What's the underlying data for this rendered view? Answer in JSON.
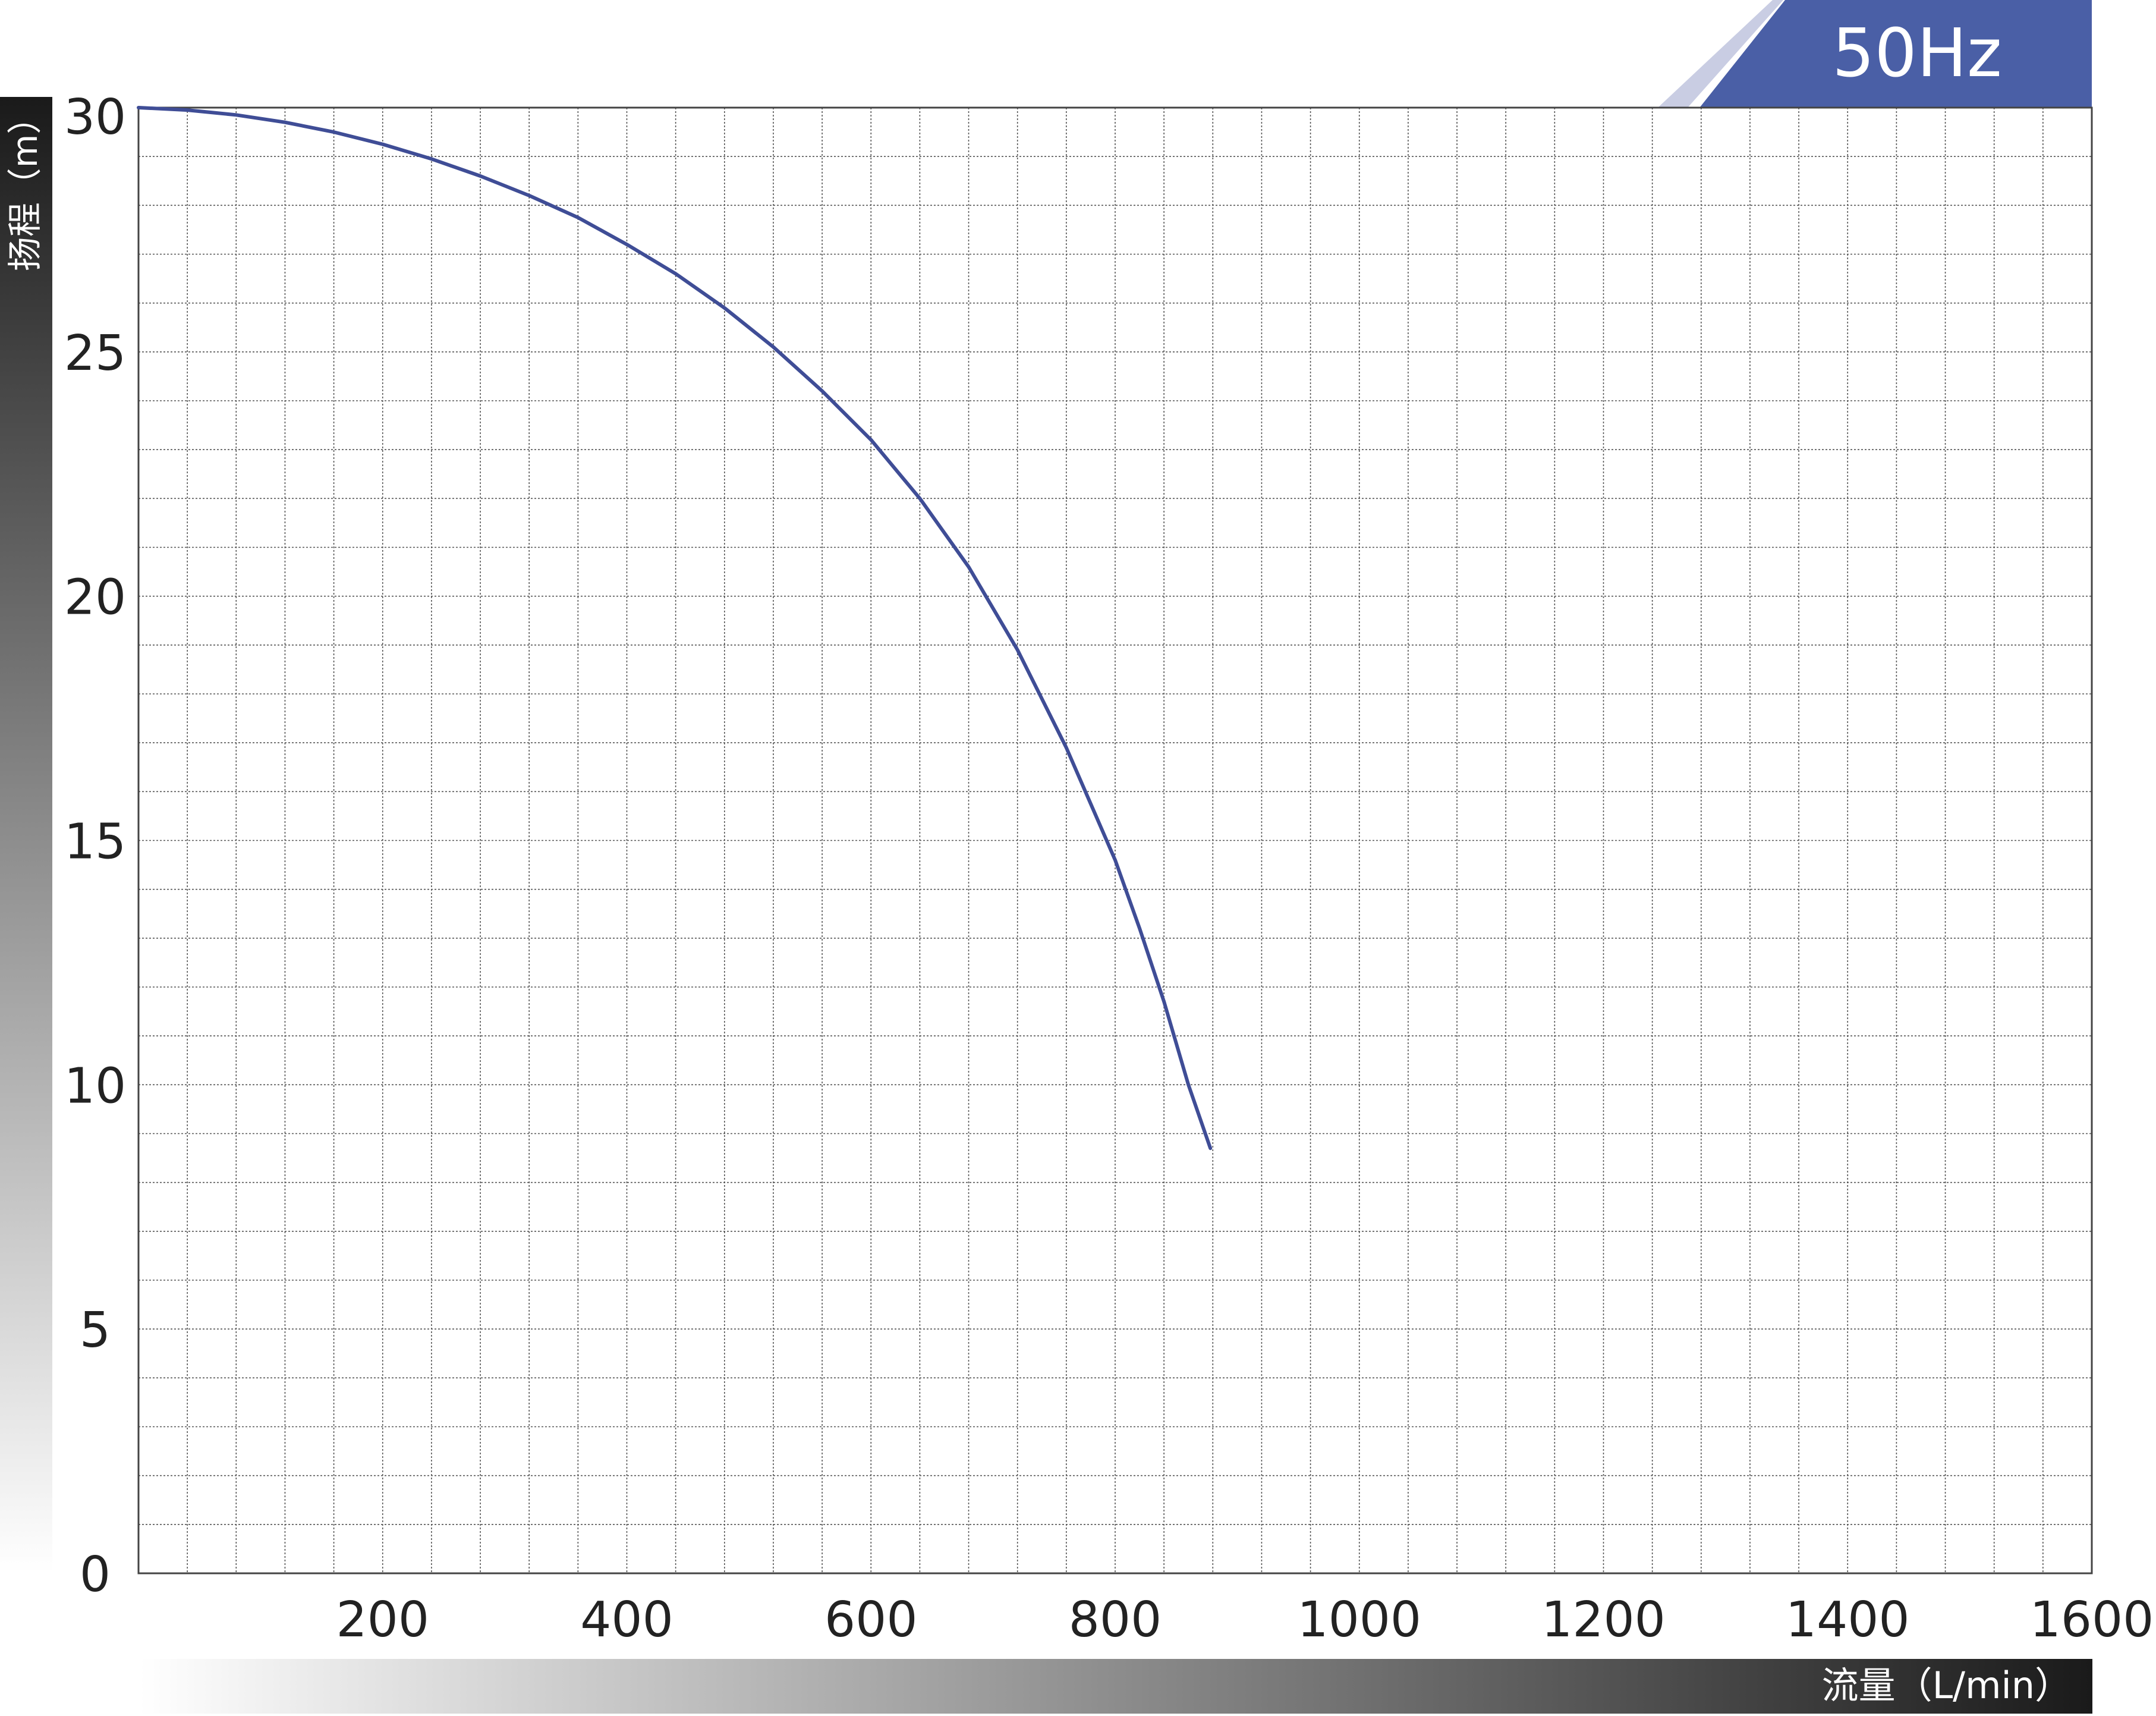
{
  "chart_data": {
    "type": "line",
    "badge_label": "50Hz",
    "xlabel": "流量（L/min）",
    "ylabel": "扬程（m）",
    "xlim": [
      0,
      1600
    ],
    "ylim": [
      0,
      30
    ],
    "x_ticks": [
      "200",
      "400",
      "600",
      "800",
      "1000",
      "1200",
      "1400",
      "1600"
    ],
    "y_ticks": [
      "0",
      "5",
      "10",
      "15",
      "20",
      "25",
      "30"
    ],
    "grid": true,
    "series": [
      {
        "color": "#3f4d96",
        "x": [
          0,
          40,
          80,
          120,
          160,
          200,
          240,
          280,
          320,
          360,
          400,
          440,
          480,
          520,
          560,
          600,
          640,
          680,
          720,
          760,
          800,
          820,
          840,
          860,
          878
        ],
        "y": [
          30.0,
          29.95,
          29.85,
          29.7,
          29.5,
          29.25,
          28.95,
          28.6,
          28.2,
          27.75,
          27.2,
          26.6,
          25.9,
          25.1,
          24.2,
          23.2,
          22.0,
          20.6,
          18.9,
          16.9,
          14.6,
          13.2,
          11.7,
          10.0,
          8.7
        ]
      }
    ],
    "colors": {
      "badge": "#4a5fa6",
      "badge_light": "#c9cde3",
      "curve": "#3f4d96"
    }
  }
}
